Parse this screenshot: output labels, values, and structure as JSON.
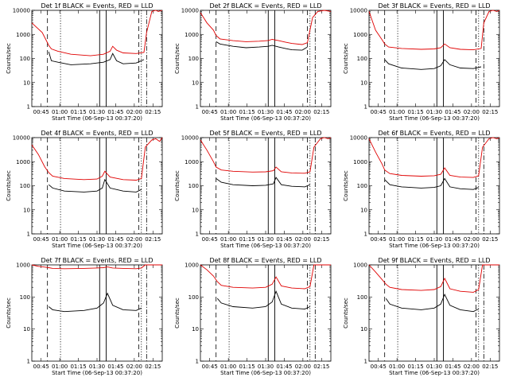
{
  "chart_data": [
    {
      "type": "line",
      "title": "Det 1f BLACK = Events, RED = LLD",
      "xlabel": "Start Time (06-Sep-13 00:37:20)",
      "ylabel": "Counts/sec",
      "ylim": [
        1,
        10000
      ],
      "y_scale": "log",
      "x_ticks": [
        "00:45",
        "01:00",
        "01:15",
        "01:30",
        "01:45",
        "02:00",
        "02:15"
      ],
      "y_ticks": [
        "1",
        "10",
        "100",
        "1000",
        "10000"
      ],
      "x": [
        0,
        8,
        13,
        15,
        20,
        30,
        45,
        55,
        60,
        62,
        65,
        70,
        80,
        86,
        88,
        92,
        95,
        97,
        100
      ],
      "series": [
        {
          "color": "#000000",
          "values": [
            null,
            null,
            190,
            80,
            70,
            55,
            60,
            70,
            90,
            160,
            80,
            60,
            65,
            90,
            null,
            null,
            null,
            null,
            null
          ]
        },
        {
          "color": "#e00000",
          "values": [
            3000,
            1200,
            350,
            250,
            200,
            150,
            130,
            150,
            200,
            320,
            220,
            170,
            160,
            180,
            1200,
            9000,
            10000,
            9000,
            10000
          ]
        }
      ],
      "markers": {
        "dashed": [
          12,
          82
        ],
        "dotted": [
          22,
          84
        ],
        "solid": [
          52,
          57
        ],
        "dashdot": [
          88
        ]
      }
    },
    {
      "type": "line",
      "title": "Det 2f BLACK = Events, RED = LLD",
      "xlabel": "Start Time (06-Sep-13 00:37:20)",
      "ylabel": "Counts/sec",
      "ylim": [
        1,
        10000
      ],
      "y_scale": "log",
      "x_ticks": [
        "00:45",
        "01:00",
        "01:15",
        "01:30",
        "01:45",
        "02:00",
        "02:15"
      ],
      "y_ticks": [
        "1",
        "10",
        "100",
        "1000",
        "10000"
      ],
      "x": [
        0,
        5,
        10,
        12,
        15,
        25,
        35,
        45,
        52,
        55,
        60,
        65,
        70,
        78,
        82,
        86,
        90,
        95,
        100
      ],
      "series": [
        {
          "color": "#000000",
          "values": [
            null,
            null,
            null,
            500,
            400,
            320,
            280,
            300,
            320,
            350,
            300,
            260,
            230,
            220,
            300,
            null,
            null,
            null,
            null
          ]
        },
        {
          "color": "#e00000",
          "values": [
            8000,
            3000,
            1500,
            900,
            650,
            550,
            500,
            520,
            560,
            620,
            550,
            480,
            420,
            380,
            450,
            5000,
            9000,
            10000,
            9000
          ]
        }
      ],
      "markers": {
        "dashed": [
          12,
          82
        ],
        "dotted": [
          22,
          84
        ],
        "solid": [
          52,
          57
        ],
        "dashdot": [
          88
        ]
      }
    },
    {
      "type": "line",
      "title": "Det 3f BLACK = Events, RED = LLD",
      "xlabel": "Start Time (06-Sep-13 00:37:20)",
      "ylabel": "Counts/sec",
      "ylim": [
        1,
        10000
      ],
      "y_scale": "log",
      "x_ticks": [
        "00:45",
        "01:00",
        "01:15",
        "01:30",
        "01:45",
        "02:00",
        "02:15"
      ],
      "y_ticks": [
        "1",
        "10",
        "100",
        "1000",
        "10000"
      ],
      "x": [
        0,
        5,
        10,
        12,
        15,
        25,
        40,
        50,
        55,
        58,
        62,
        70,
        80,
        86,
        88,
        92,
        95,
        98,
        100
      ],
      "series": [
        {
          "color": "#000000",
          "values": [
            null,
            null,
            null,
            90,
            60,
            40,
            35,
            38,
            50,
            90,
            55,
            40,
            38,
            45,
            null,
            null,
            null,
            null,
            null
          ]
        },
        {
          "color": "#e00000",
          "values": [
            9000,
            1500,
            600,
            400,
            300,
            260,
            240,
            250,
            280,
            400,
            280,
            240,
            230,
            260,
            3000,
            9000,
            10000,
            9000,
            10000
          ]
        }
      ],
      "markers": {
        "dashed": [
          12,
          82
        ],
        "dotted": [
          22,
          84
        ],
        "solid": [
          52,
          57
        ],
        "dashdot": [
          88
        ]
      }
    },
    {
      "type": "line",
      "title": "Det 4f BLACK = Events, RED = LLD",
      "xlabel": "Start Time (06-Sep-13 00:37:20)",
      "ylabel": "Counts/sec",
      "ylim": [
        1,
        10000
      ],
      "y_scale": "log",
      "x_ticks": [
        "00:45",
        "01:00",
        "01:15",
        "01:30",
        "01:45",
        "02:00",
        "02:15"
      ],
      "y_ticks": [
        "1",
        "10",
        "100",
        "1000",
        "10000"
      ],
      "x": [
        0,
        5,
        10,
        13,
        16,
        25,
        40,
        50,
        54,
        56,
        60,
        70,
        80,
        84,
        87,
        92,
        95,
        98,
        100
      ],
      "series": [
        {
          "color": "#000000",
          "values": [
            null,
            null,
            null,
            110,
            80,
            60,
            55,
            60,
            80,
            180,
            80,
            60,
            55,
            70,
            null,
            null,
            null,
            null,
            null
          ]
        },
        {
          "color": "#e00000",
          "values": [
            5000,
            2000,
            600,
            350,
            250,
            200,
            180,
            190,
            250,
            400,
            230,
            180,
            170,
            200,
            4000,
            8000,
            9000,
            7000,
            10000
          ]
        }
      ],
      "markers": {
        "dashed": [
          12,
          82
        ],
        "dotted": [
          22,
          84
        ],
        "solid": [
          52,
          57
        ],
        "dashdot": [
          88
        ]
      }
    },
    {
      "type": "line",
      "title": "Det 5f BLACK = Events, RED = LLD",
      "xlabel": "Start Time (06-Sep-13 00:37:20)",
      "ylabel": "Counts/sec",
      "ylim": [
        1,
        10000
      ],
      "y_scale": "log",
      "x_ticks": [
        "00:45",
        "01:00",
        "01:15",
        "01:30",
        "01:45",
        "02:00",
        "02:15"
      ],
      "y_ticks": [
        "1",
        "10",
        "100",
        "1000",
        "10000"
      ],
      "x": [
        0,
        5,
        10,
        12,
        16,
        25,
        40,
        50,
        56,
        58,
        62,
        70,
        80,
        84,
        87,
        92,
        95,
        98,
        100
      ],
      "series": [
        {
          "color": "#000000",
          "values": [
            null,
            null,
            null,
            200,
            140,
            110,
            100,
            105,
            120,
            220,
            110,
            95,
            90,
            110,
            null,
            null,
            null,
            null,
            null
          ]
        },
        {
          "color": "#e00000",
          "values": [
            8000,
            3000,
            1000,
            600,
            450,
            400,
            370,
            380,
            420,
            600,
            380,
            340,
            330,
            380,
            4000,
            9000,
            10000,
            9000,
            10000
          ]
        }
      ],
      "markers": {
        "dashed": [
          12,
          82
        ],
        "dotted": [
          22,
          84
        ],
        "solid": [
          52,
          57
        ],
        "dashdot": [
          88
        ]
      }
    },
    {
      "type": "line",
      "title": "Det 6f BLACK = Events, RED = LLD",
      "xlabel": "Start Time (06-Sep-13 00:37:20)",
      "ylabel": "Counts/sec",
      "ylim": [
        1,
        10000
      ],
      "y_scale": "log",
      "x_ticks": [
        "00:45",
        "01:00",
        "01:15",
        "01:30",
        "01:45",
        "02:00",
        "02:15"
      ],
      "y_ticks": [
        "1",
        "10",
        "100",
        "1000",
        "10000"
      ],
      "x": [
        0,
        5,
        10,
        12,
        16,
        25,
        40,
        50,
        55,
        58,
        62,
        70,
        80,
        84,
        87,
        92,
        95,
        98,
        100
      ],
      "series": [
        {
          "color": "#000000",
          "values": [
            null,
            null,
            null,
            180,
            110,
            90,
            80,
            85,
            100,
            200,
            90,
            75,
            70,
            85,
            null,
            null,
            null,
            null,
            null
          ]
        },
        {
          "color": "#e00000",
          "values": [
            9000,
            2500,
            800,
            450,
            320,
            270,
            250,
            260,
            300,
            550,
            270,
            230,
            220,
            260,
            4000,
            9000,
            10000,
            9000,
            10000
          ]
        }
      ],
      "markers": {
        "dashed": [
          12,
          82
        ],
        "dotted": [
          22,
          84
        ],
        "solid": [
          52,
          57
        ],
        "dashdot": [
          88
        ]
      }
    },
    {
      "type": "line",
      "title": "Det 7f BLACK = Events, RED = LLD",
      "xlabel": "Start Time (06-Sep-13 00:37:20)",
      "ylabel": "Counts/sec",
      "ylim": [
        1,
        1000
      ],
      "y_scale": "log",
      "x_ticks": [
        "00:45",
        "01:00",
        "01:15",
        "01:30",
        "01:45",
        "02:00",
        "02:15"
      ],
      "y_ticks": [
        "1",
        "10",
        "100",
        "1000"
      ],
      "x": [
        0,
        5,
        10,
        13,
        16,
        25,
        40,
        50,
        55,
        58,
        62,
        70,
        80,
        84,
        87,
        92,
        95,
        98,
        100
      ],
      "series": [
        {
          "color": "#000000",
          "values": [
            null,
            null,
            null,
            50,
            40,
            35,
            38,
            45,
            65,
            130,
            55,
            40,
            38,
            45,
            null,
            null,
            null,
            null,
            null
          ]
        },
        {
          "color": "#e00000",
          "values": [
            1000,
            900,
            850,
            820,
            780,
            760,
            780,
            800,
            820,
            860,
            800,
            780,
            760,
            800,
            1000,
            1000,
            1000,
            1000,
            1000
          ]
        }
      ],
      "markers": {
        "dashed": [
          12,
          82
        ],
        "dotted": [
          22,
          84
        ],
        "solid": [
          52,
          57
        ],
        "dashdot": [
          88
        ]
      }
    },
    {
      "type": "line",
      "title": "Det 8f BLACK = Events, RED = LLD",
      "xlabel": "Start Time (06-Sep-13 00:37:20)",
      "ylabel": "Counts/sec",
      "ylim": [
        1,
        1000
      ],
      "y_scale": "log",
      "x_ticks": [
        "00:45",
        "01:00",
        "01:15",
        "01:30",
        "01:45",
        "02:00",
        "02:15"
      ],
      "y_ticks": [
        "1",
        "10",
        "100",
        "1000"
      ],
      "x": [
        0,
        5,
        10,
        13,
        16,
        25,
        40,
        50,
        55,
        58,
        62,
        70,
        80,
        84,
        87,
        92,
        95,
        98,
        100
      ],
      "series": [
        {
          "color": "#000000",
          "values": [
            null,
            null,
            null,
            90,
            65,
            50,
            45,
            50,
            70,
            150,
            60,
            45,
            42,
            50,
            null,
            null,
            null,
            null,
            null
          ]
        },
        {
          "color": "#e00000",
          "values": [
            1000,
            700,
            450,
            300,
            230,
            200,
            190,
            200,
            250,
            420,
            220,
            190,
            180,
            210,
            1000,
            1000,
            1000,
            1000,
            1000
          ]
        }
      ],
      "markers": {
        "dashed": [
          12,
          82
        ],
        "dotted": [
          22,
          84
        ],
        "solid": [
          52,
          57
        ],
        "dashdot": [
          88
        ]
      }
    },
    {
      "type": "line",
      "title": "Det 9f BLACK = Events, RED = LLD",
      "xlabel": "Start Time (06-Sep-13 00:37:20)",
      "ylabel": "Counts/sec",
      "ylim": [
        1,
        1000
      ],
      "y_scale": "log",
      "x_ticks": [
        "00:45",
        "01:00",
        "01:15",
        "01:30",
        "01:45",
        "02:00",
        "02:15"
      ],
      "y_ticks": [
        "1",
        "10",
        "100",
        "1000"
      ],
      "x": [
        0,
        5,
        10,
        13,
        16,
        25,
        40,
        50,
        55,
        58,
        62,
        70,
        80,
        84,
        87,
        92,
        95,
        98,
        100
      ],
      "series": [
        {
          "color": "#000000",
          "values": [
            null,
            null,
            null,
            90,
            60,
            45,
            40,
            45,
            60,
            120,
            55,
            40,
            35,
            42,
            null,
            null,
            null,
            null,
            null
          ]
        },
        {
          "color": "#e00000",
          "values": [
            1000,
            600,
            350,
            250,
            200,
            170,
            160,
            170,
            210,
            380,
            180,
            150,
            140,
            170,
            1000,
            1000,
            1000,
            1000,
            1000
          ]
        }
      ],
      "markers": {
        "dashed": [
          12,
          82
        ],
        "dotted": [
          22,
          84
        ],
        "solid": [
          52,
          57
        ],
        "dashdot": [
          88
        ]
      }
    }
  ]
}
